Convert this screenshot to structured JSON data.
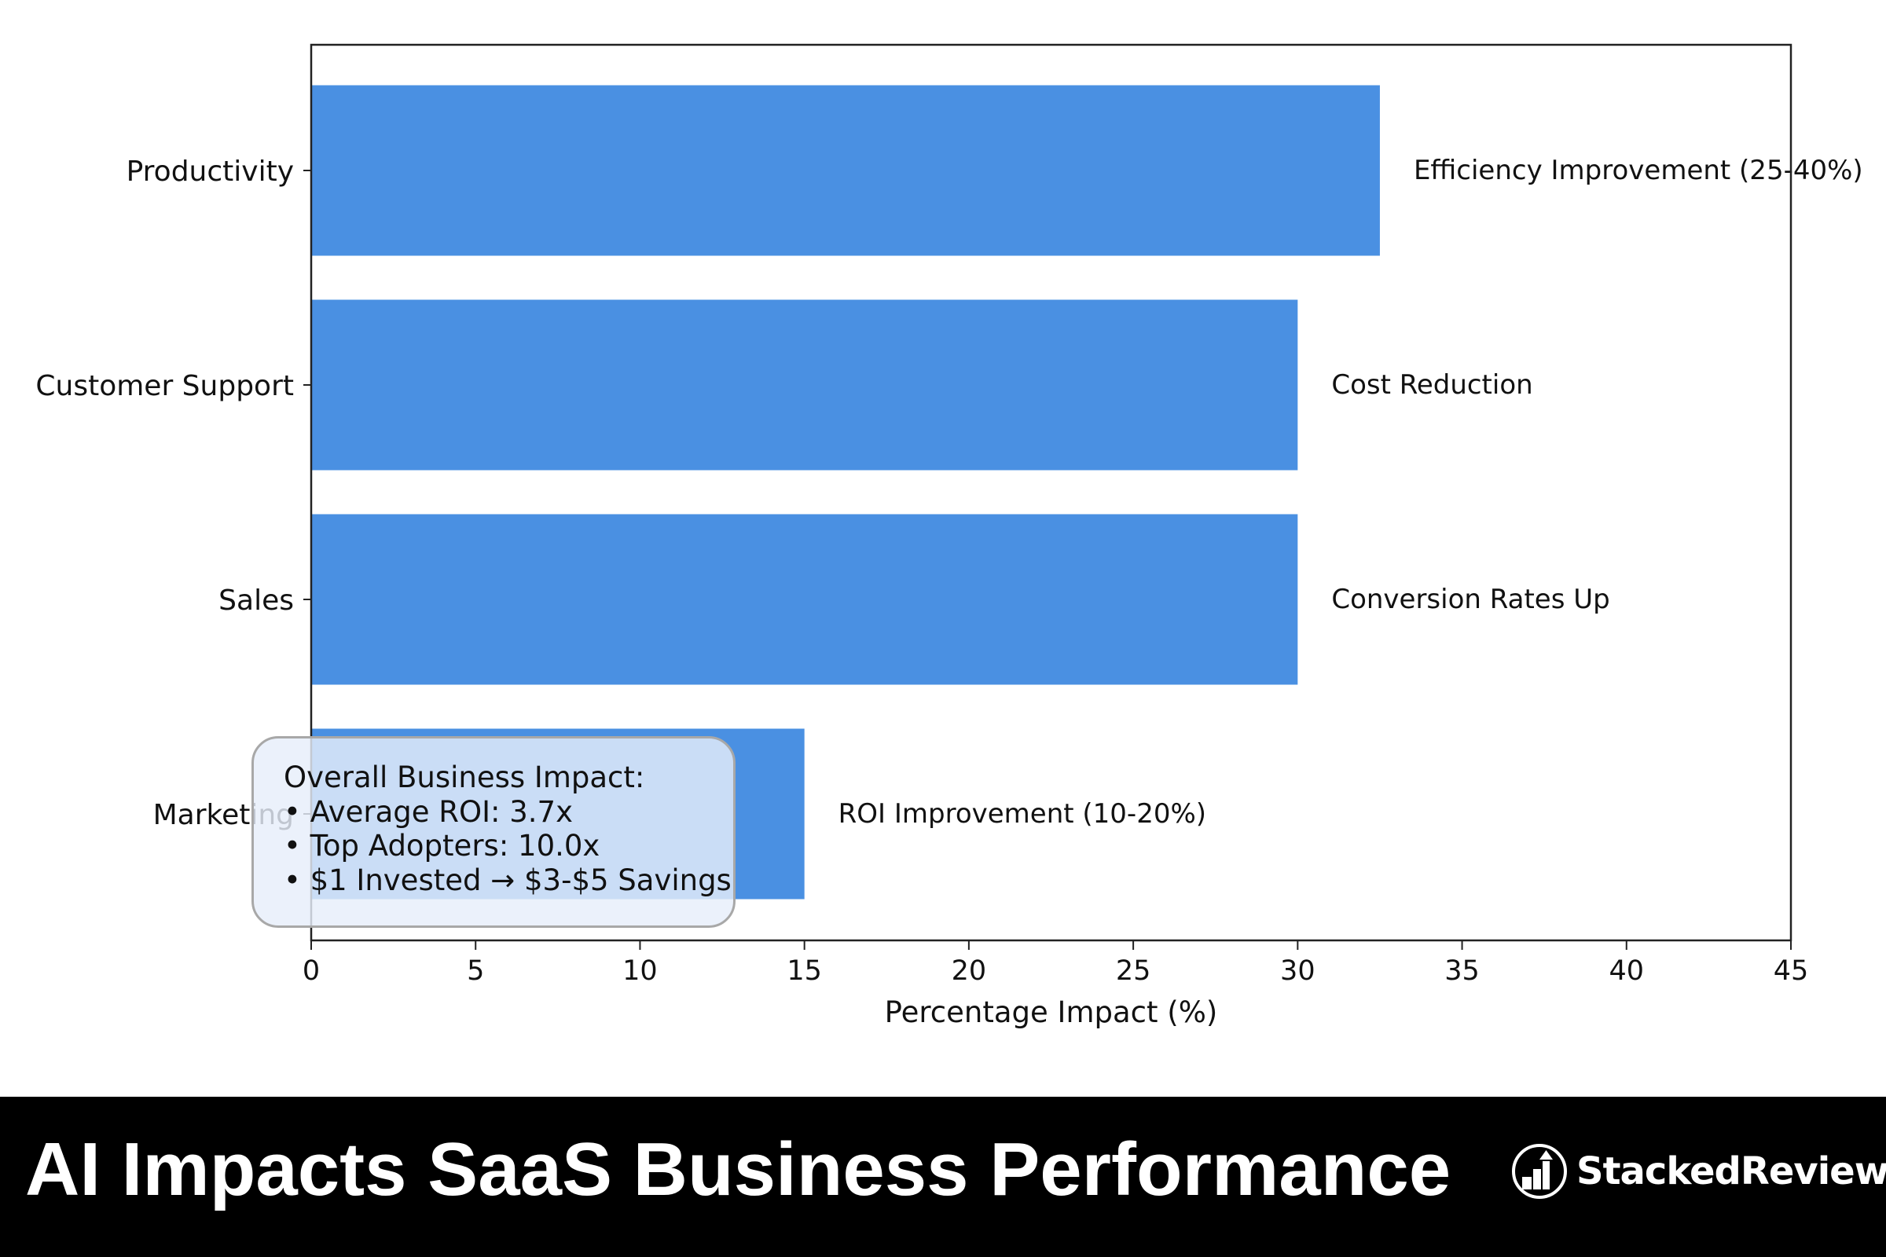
{
  "chart_data": {
    "type": "bar",
    "orientation": "horizontal",
    "categories": [
      "Productivity",
      "Customer Support",
      "Sales",
      "Marketing"
    ],
    "values": [
      32.5,
      30,
      30,
      15
    ],
    "bar_labels": [
      "Efficiency Improvement (25-40%)",
      "Cost Reduction",
      "Conversion Rates Up",
      "ROI Improvement (10-20%)"
    ],
    "xlabel": "Percentage Impact (%)",
    "ylabel": "",
    "xlim": [
      0,
      45
    ],
    "xticks": [
      "0",
      "5",
      "10",
      "15",
      "20",
      "25",
      "30",
      "35",
      "40",
      "45"
    ],
    "grid": false,
    "bar_color": "#4a90e2",
    "annotation": {
      "title": "Overall Business Impact:",
      "lines": [
        "• Average ROI: 3.7x",
        "• Top Adopters: 10.0x",
        "• $1 Invested → $3-$5 Savings"
      ]
    }
  },
  "banner": {
    "title": "AI Impacts SaaS Business Performance",
    "logo_text": "StackedReview",
    "logo_icon": "bar-chart-arrow-icon"
  }
}
